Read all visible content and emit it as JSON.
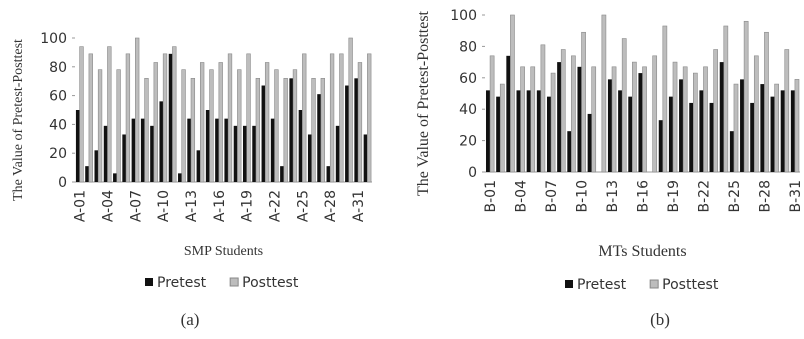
{
  "chart_data": [
    {
      "type": "bar",
      "caption": "(a)",
      "xlabel": "SMP Students",
      "ylabel": "The Value of Pretest-Posttest",
      "categories": [
        "A-01",
        null,
        null,
        "A-04",
        null,
        null,
        "A-07",
        null,
        null,
        "A-10",
        null,
        null,
        "A-13",
        null,
        null,
        "A-16",
        null,
        null,
        "A-19",
        null,
        null,
        "A-22",
        null,
        null,
        "A-25",
        null,
        null,
        "A-28",
        null,
        null,
        "A-31",
        null
      ],
      "series": [
        {
          "name": "Pretest",
          "color": "#111111",
          "values": [
            50,
            11,
            22,
            39,
            6,
            33,
            44,
            44,
            39,
            56,
            89,
            6,
            44,
            22,
            50,
            44,
            44,
            39,
            39,
            39,
            67,
            44,
            11,
            72,
            50,
            33,
            61,
            11,
            39,
            67,
            72,
            33
          ]
        },
        {
          "name": "Posttest",
          "color": "#bdbdbd",
          "values": [
            94,
            89,
            78,
            94,
            78,
            89,
            100,
            72,
            83,
            89,
            94,
            78,
            72,
            83,
            78,
            83,
            89,
            78,
            89,
            72,
            83,
            78,
            72,
            78,
            89,
            72,
            72,
            89,
            89,
            100,
            83,
            89
          ]
        }
      ],
      "ylim": [
        0,
        100
      ],
      "yticks": [
        0,
        20,
        40,
        60,
        80,
        100
      ],
      "grid": false,
      "legend": "bottom"
    },
    {
      "type": "bar",
      "caption": "(b)",
      "xlabel": "MTs Students",
      "ylabel": "The Value of Pretest-Posttest",
      "categories": [
        "B-01",
        null,
        null,
        "B-04",
        null,
        null,
        "B-07",
        null,
        null,
        "B-10",
        null,
        null,
        "B-13",
        null,
        null,
        "B-16",
        null,
        null,
        "B-19",
        null,
        null,
        "B-22",
        null,
        null,
        "B-25",
        null,
        null,
        "B-28",
        null,
        null,
        "B-31"
      ],
      "series": [
        {
          "name": "Pretest",
          "color": "#111111",
          "values": [
            52,
            48,
            74,
            52,
            52,
            52,
            48,
            70,
            26,
            67,
            37,
            0,
            59,
            52,
            48,
            63,
            0,
            33,
            48,
            59,
            44,
            52,
            44,
            70,
            26,
            59,
            44,
            56,
            48,
            52,
            52
          ]
        },
        {
          "name": "Posttest",
          "color": "#bdbdbd",
          "values": [
            74,
            56,
            100,
            67,
            67,
            81,
            63,
            78,
            74,
            89,
            67,
            100,
            67,
            85,
            70,
            67,
            74,
            93,
            70,
            67,
            63,
            67,
            78,
            93,
            56,
            96,
            74,
            89,
            56,
            78,
            59
          ]
        }
      ],
      "ylim": [
        0,
        100
      ],
      "yticks": [
        0,
        20,
        40,
        60,
        80,
        100
      ],
      "grid": false,
      "legend": "bottom"
    }
  ]
}
